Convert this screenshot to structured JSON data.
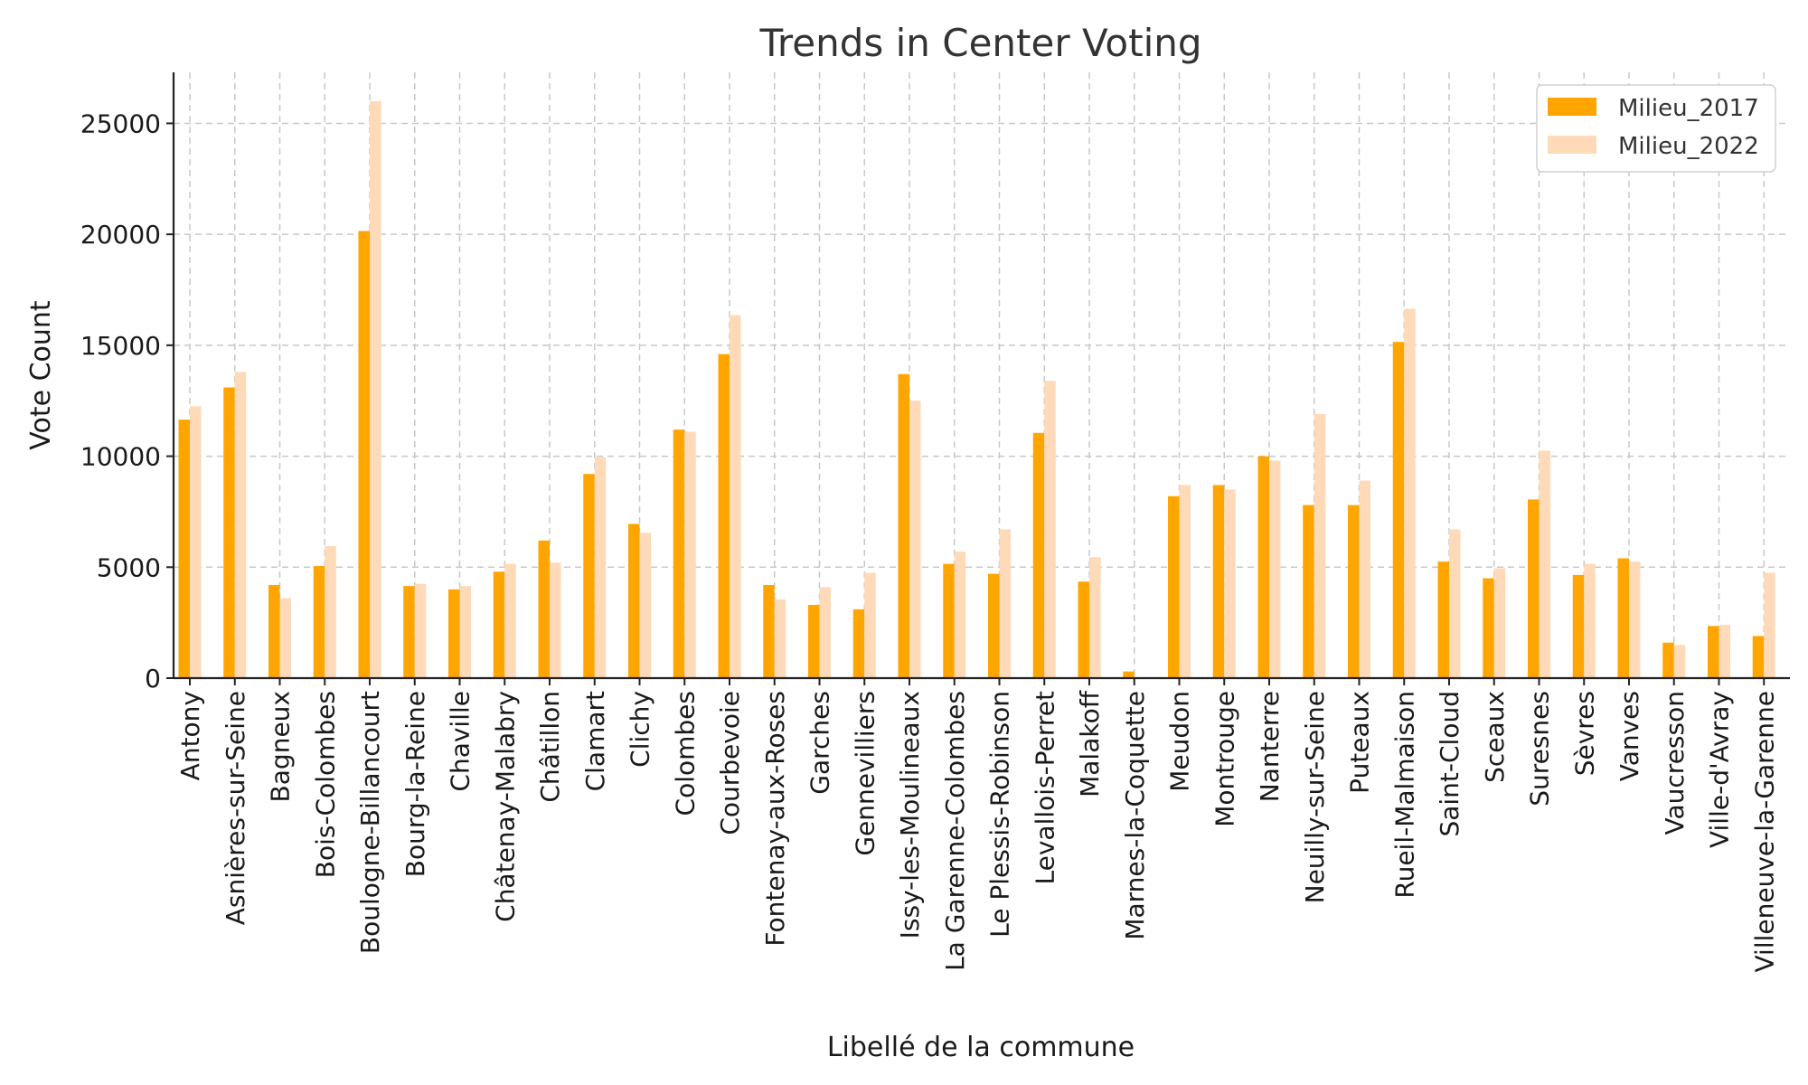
{
  "chart_data": {
    "type": "bar",
    "title": "Trends in Center Voting",
    "xlabel": "Libellé de la commune",
    "ylabel": "Vote Count",
    "ylim": [
      0,
      27300
    ],
    "yticks": [
      0,
      5000,
      10000,
      15000,
      20000,
      25000
    ],
    "grid": true,
    "legend_position": "top-right",
    "categories": [
      "Antony",
      "Asnières-sur-Seine",
      "Bagneux",
      "Bois-Colombes",
      "Boulogne-Billancourt",
      "Bourg-la-Reine",
      "Chaville",
      "Châtenay-Malabry",
      "Châtillon",
      "Clamart",
      "Clichy",
      "Colombes",
      "Courbevoie",
      "Fontenay-aux-Roses",
      "Garches",
      "Gennevilliers",
      "Issy-les-Moulineaux",
      "La Garenne-Colombes",
      "Le Plessis-Robinson",
      "Levallois-Perret",
      "Malakoff",
      "Marnes-la-Coquette",
      "Meudon",
      "Montrouge",
      "Nanterre",
      "Neuilly-sur-Seine",
      "Puteaux",
      "Rueil-Malmaison",
      "Saint-Cloud",
      "Sceaux",
      "Suresnes",
      "Sèvres",
      "Vanves",
      "Vaucresson",
      "Ville-d'Avray",
      "Villeneuve-la-Garenne"
    ],
    "series": [
      {
        "name": "Milieu_2017",
        "color": "#FFA500",
        "values": [
          11650,
          13100,
          4200,
          5050,
          20150,
          4150,
          4000,
          4800,
          6200,
          9200,
          6950,
          11200,
          14600,
          4200,
          3300,
          3100,
          13700,
          5150,
          4700,
          11050,
          4350,
          300,
          8200,
          8700,
          10000,
          7800,
          7800,
          15150,
          5250,
          4500,
          8050,
          4650,
          5400,
          1600,
          2350,
          1900
        ]
      },
      {
        "name": "Milieu_2022",
        "color": "#FFDAB9",
        "values": [
          12250,
          13800,
          3600,
          5950,
          26000,
          4250,
          4150,
          5150,
          5200,
          9950,
          6550,
          11100,
          16350,
          3550,
          4100,
          4750,
          12500,
          5700,
          6700,
          13400,
          5450,
          0,
          8700,
          8500,
          9800,
          11900,
          8900,
          16650,
          6700,
          4950,
          10250,
          5150,
          5250,
          1500,
          2400,
          4750
        ]
      }
    ]
  }
}
